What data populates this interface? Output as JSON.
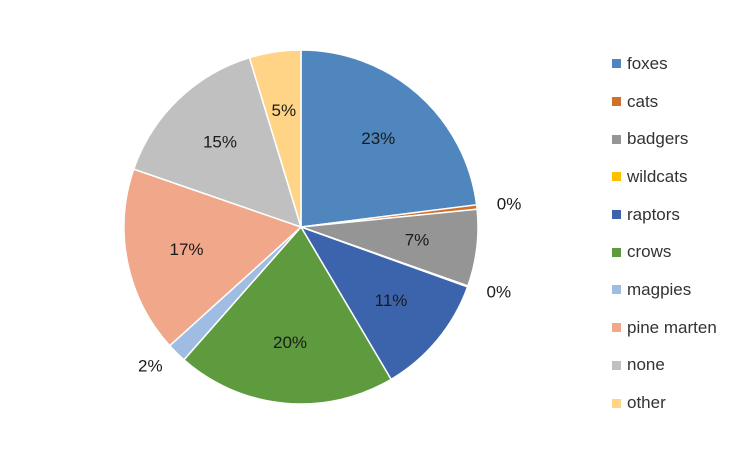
{
  "chart_data": {
    "type": "pie",
    "title": "",
    "start_angle_deg": 0,
    "direction": "clockwise",
    "legend_position": "right",
    "slices": [
      {
        "label": "foxes",
        "value": 23,
        "display": "23%",
        "color": "#4e86bd",
        "label_outside": false
      },
      {
        "label": "cats",
        "value": 0.4,
        "display": "0%",
        "color": "#d36f2c",
        "label_outside": true
      },
      {
        "label": "badgers",
        "value": 7,
        "display": "7%",
        "color": "#959595",
        "label_outside": false
      },
      {
        "label": "wildcats",
        "value": 0.1,
        "display": "0%",
        "color": "#ffc000",
        "label_outside": true
      },
      {
        "label": "raptors",
        "value": 11,
        "display": "11%",
        "color": "#3b64ad",
        "label_outside": false
      },
      {
        "label": "crows",
        "value": 20,
        "display": "20%",
        "color": "#5e9a3e",
        "label_outside": false
      },
      {
        "label": "magpies",
        "value": 1.8,
        "display": "2%",
        "color": "#9fbce3",
        "label_outside": true
      },
      {
        "label": "pine marten",
        "value": 17,
        "display": "17%",
        "color": "#f0a78a",
        "label_outside": false
      },
      {
        "label": "none",
        "value": 15,
        "display": "15%",
        "color": "#c0c0c0",
        "label_outside": false
      },
      {
        "label": "other",
        "value": 4.7,
        "display": "5%",
        "color": "#ffd486",
        "label_outside": false
      }
    ]
  }
}
